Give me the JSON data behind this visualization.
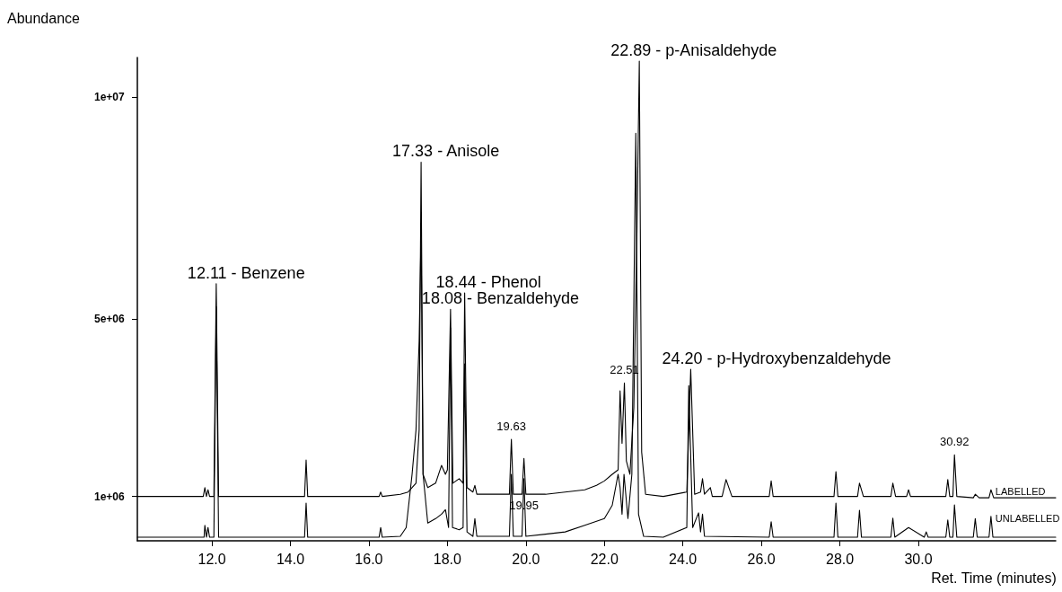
{
  "chart_data": {
    "type": "line",
    "xlabel": "Ret. Time (minutes)",
    "ylabel": "Abundance",
    "xlim": [
      10.1,
      33.5
    ],
    "ylim": [
      0,
      10900000
    ],
    "xticks": [
      {
        "value": 12,
        "label": "12.0"
      },
      {
        "value": 14,
        "label": "14.0"
      },
      {
        "value": 16,
        "label": "16.0"
      },
      {
        "value": 18,
        "label": "18.0"
      },
      {
        "value": 20,
        "label": "20.0"
      },
      {
        "value": 22,
        "label": "22.0"
      },
      {
        "value": 24,
        "label": "24.0"
      },
      {
        "value": 26,
        "label": "26.0"
      },
      {
        "value": 28,
        "label": "28.0"
      },
      {
        "value": 30,
        "label": "30.0"
      }
    ],
    "yticks": [
      {
        "value": 1000000,
        "label": "1e+06"
      },
      {
        "value": 5000000,
        "label": "5e+06"
      },
      {
        "value": 10000000,
        "label": "1e+07"
      }
    ],
    "grid": false,
    "legend": false,
    "marker": "none",
    "line_style": "solid",
    "series": [
      {
        "name": "LABELLED",
        "color": "#000000",
        "x": [
          10.1,
          11.0,
          11.78,
          11.82,
          11.86,
          11.9,
          11.94,
          12.05,
          12.11,
          12.17,
          13.0,
          14.36,
          14.4,
          14.44,
          16.26,
          16.3,
          16.34,
          16.8,
          17.0,
          17.2,
          17.28,
          17.33,
          17.38,
          17.5,
          17.7,
          17.85,
          17.95,
          18.0,
          18.08,
          18.14,
          18.3,
          18.4,
          18.44,
          18.5,
          18.65,
          18.7,
          18.75,
          19.0,
          19.58,
          19.63,
          19.68,
          19.9,
          19.95,
          20.0,
          20.5,
          21.0,
          21.5,
          21.8,
          22.0,
          22.2,
          22.35,
          22.4,
          22.45,
          22.51,
          22.56,
          22.65,
          22.75,
          22.83,
          22.89,
          22.95,
          23.05,
          23.5,
          24.1,
          24.2,
          24.3,
          24.45,
          24.5,
          24.55,
          24.7,
          24.75,
          24.8,
          25.0,
          25.1,
          25.25,
          26.2,
          26.25,
          26.3,
          27.85,
          27.9,
          27.95,
          28.45,
          28.5,
          28.6,
          29.3,
          29.35,
          29.42,
          29.7,
          29.75,
          29.8,
          30.2,
          30.7,
          30.75,
          30.8,
          30.88,
          30.92,
          30.98,
          31.4,
          31.45,
          31.55,
          31.8,
          31.85,
          31.92,
          33.5
        ],
        "values": [
          1000000.0,
          1000000.0,
          1000000.0,
          1200000.0,
          1000000.0,
          1150000.0,
          1000000.0,
          1000000.0,
          5800000.0,
          1000000.0,
          1000000.0,
          1000000.0,
          1820000.0,
          1000000.0,
          1000000.0,
          1100000.0,
          1000000.0,
          1050000.0,
          1100000.0,
          1300000.0,
          2500000.0,
          8540000.0,
          1500000.0,
          1200000.0,
          1300000.0,
          1700000.0,
          1500000.0,
          1600000.0,
          5220000.0,
          1300000.0,
          1400000.0,
          1300000.0,
          5590000.0,
          1200000.0,
          1100000.0,
          1250000.0,
          1050000.0,
          1050000.0,
          1050000.0,
          2290000.0,
          1050000.0,
          1050000.0,
          1860000.0,
          1050000.0,
          1050000.0,
          1100000.0,
          1150000.0,
          1250000.0,
          1350000.0,
          1500000.0,
          1600000.0,
          3380000.0,
          2200000.0,
          3560000.0,
          1800000.0,
          1500000.0,
          3000000.0,
          7000000.0,
          10820000.0,
          2000000.0,
          1050000.0,
          1000000.0,
          1100000.0,
          3870000.0,
          1050000.0,
          1100000.0,
          1400000.0,
          1050000.0,
          1200000.0,
          1000000.0,
          1000000.0,
          1000000.0,
          1380000.0,
          1000000.0,
          1000000.0,
          1350000.0,
          1000000.0,
          1000000.0,
          1560000.0,
          1000000.0,
          1000000.0,
          1300000.0,
          1000000.0,
          1000000.0,
          1300000.0,
          1000000.0,
          1000000.0,
          1150000.0,
          1000000.0,
          1000000.0,
          1000000.0,
          1380000.0,
          1000000.0,
          1000000.0,
          1940000.0,
          1000000.0,
          970000.0,
          1050000.0,
          970000.0,
          970000.0,
          1150000.0,
          970000.0,
          970000.0
        ]
      },
      {
        "name": "UNLABELLED",
        "color": "#000000",
        "x": [
          10.1,
          11.8,
          11.82,
          11.86,
          11.9,
          11.94,
          12.05,
          12.11,
          12.17,
          14.36,
          14.4,
          14.44,
          16.26,
          16.3,
          16.34,
          16.8,
          16.95,
          17.1,
          17.2,
          17.28,
          17.33,
          17.38,
          17.5,
          17.7,
          17.85,
          17.95,
          18.03,
          18.08,
          18.13,
          18.3,
          18.4,
          18.44,
          18.5,
          18.65,
          18.7,
          18.75,
          19.0,
          19.58,
          19.63,
          19.68,
          19.9,
          19.95,
          20.0,
          20.5,
          21.0,
          21.5,
          22.0,
          22.2,
          22.35,
          22.4,
          22.45,
          22.5,
          22.6,
          22.7,
          22.8,
          22.87,
          23.0,
          23.5,
          24.1,
          24.15,
          24.25,
          24.4,
          24.45,
          24.5,
          24.55,
          26.2,
          26.25,
          26.3,
          27.85,
          27.9,
          27.95,
          28.45,
          28.5,
          28.55,
          29.3,
          29.35,
          29.4,
          29.75,
          30.15,
          30.2,
          30.25,
          30.7,
          30.75,
          30.8,
          30.88,
          30.92,
          30.98,
          31.4,
          31.45,
          31.5,
          31.8,
          31.85,
          31.9,
          33.5
        ],
        "values": [
          80000.0,
          80000.0,
          350000.0,
          80000.0,
          300000.0,
          80000.0,
          80000.0,
          5280000.0,
          80000.0,
          80000.0,
          850000.0,
          80000.0,
          80000.0,
          300000.0,
          80000.0,
          100000.0,
          300000.0,
          1500000.0,
          2500000.0,
          4500000.0,
          7000000.0,
          1500000.0,
          400000.0,
          500000.0,
          600000.0,
          700000.0,
          300000.0,
          4800000.0,
          300000.0,
          250000.0,
          300000.0,
          3990000.0,
          200000.0,
          100000.0,
          500000.0,
          100000.0,
          100000.0,
          100000.0,
          1500000.0,
          100000.0,
          100000.0,
          1400000.0,
          100000.0,
          150000.0,
          200000.0,
          350000.0,
          500000.0,
          800000.0,
          1500000.0,
          1200000.0,
          600000.0,
          1500000.0,
          500000.0,
          1500000.0,
          9190000.0,
          600000.0,
          100000.0,
          80000.0,
          300000.0,
          3500000.0,
          300000.0,
          630000.0,
          200000.0,
          600000.0,
          100000.0,
          80000.0,
          430000.0,
          80000.0,
          80000.0,
          850000.0,
          80000.0,
          80000.0,
          690000.0,
          80000.0,
          80000.0,
          510000.0,
          80000.0,
          300000.0,
          80000.0,
          200000.0,
          80000.0,
          80000.0,
          470000.0,
          80000.0,
          80000.0,
          810000.0,
          80000.0,
          80000.0,
          500000.0,
          80000.0,
          80000.0,
          550000.0,
          80000.0,
          80000.0
        ]
      }
    ],
    "annotations": [
      {
        "text": "12.11 - Benzene",
        "x": 12.11,
        "y": 5800000
      },
      {
        "text": "17.33 - Anisole",
        "x": 17.33,
        "y": 8540000
      },
      {
        "text": "18.44 - Phenol",
        "x": 18.44,
        "y": 5590000
      },
      {
        "text": "18.08 - Benzaldehyde",
        "x": 18.08,
        "y": 5220000
      },
      {
        "text": "22.89 - p-Anisaldehyde",
        "x": 22.89,
        "y": 10820000
      },
      {
        "text": "24.20 - p-Hydroxybenzaldehyde",
        "x": 24.2,
        "y": 3870000
      },
      {
        "text": "19.63",
        "x": 19.63,
        "y": 2290000
      },
      {
        "text": "22.51",
        "x": 22.51,
        "y": 3560000
      },
      {
        "text": "19.95",
        "x": 19.95,
        "y": 500000
      },
      {
        "text": "30.92",
        "x": 30.92,
        "y": 1940000
      }
    ]
  }
}
